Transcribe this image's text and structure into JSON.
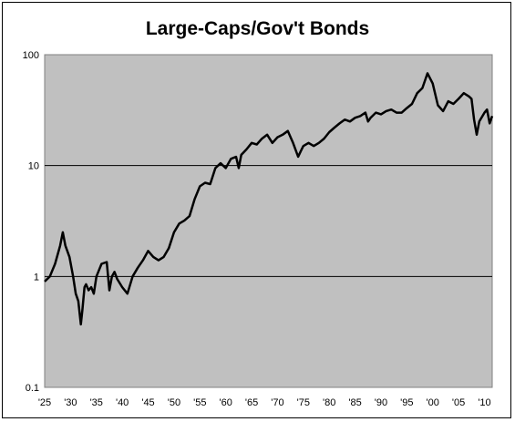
{
  "chart_data": {
    "type": "line",
    "title": "Large-Caps/Gov't Bonds",
    "xlabel": "",
    "ylabel": "",
    "y_scale": "log",
    "ylim": [
      0.1,
      100
    ],
    "xlim": [
      1925,
      2011.5
    ],
    "y_ticks": [
      "0.1",
      "1",
      "10",
      "100"
    ],
    "y_tick_values": [
      0.1,
      1,
      10,
      100
    ],
    "x_ticks": [
      "'25",
      "'30",
      "'35",
      "'40",
      "'45",
      "'50",
      "'55",
      "'60",
      "'65",
      "'70",
      "'75",
      "'80",
      "'85",
      "'90",
      "'95",
      "'00",
      "'05",
      "'10"
    ],
    "x_tick_values": [
      1925,
      1930,
      1935,
      1940,
      1945,
      1950,
      1955,
      1960,
      1965,
      1970,
      1975,
      1980,
      1985,
      1990,
      1995,
      2000,
      2005,
      2010
    ],
    "grid": true,
    "legend": "none",
    "colors": {
      "plot_background": "#c0c0c0",
      "line": "#000000",
      "gridline": "#000000"
    },
    "series": [
      {
        "x": [
          1925,
          1926,
          1927,
          1928,
          1928.5,
          1929,
          1929.8,
          1930.5,
          1931,
          1931.5,
          1932,
          1932.3,
          1932.7,
          1933,
          1933.5,
          1934,
          1934.5,
          1935,
          1936,
          1937,
          1937.5,
          1938,
          1938.5,
          1939,
          1940,
          1941,
          1942,
          1943,
          1944,
          1945,
          1946,
          1947,
          1948,
          1949,
          1950,
          1951,
          1952,
          1953,
          1954,
          1955,
          1956,
          1957,
          1958,
          1959,
          1960,
          1961,
          1962,
          1962.5,
          1963,
          1964,
          1965,
          1966,
          1967,
          1968,
          1969,
          1970,
          1971,
          1972,
          1973,
          1974,
          1974.5,
          1975,
          1976,
          1977,
          1978,
          1979,
          1980,
          1981,
          1982,
          1983,
          1984,
          1985,
          1986,
          1987,
          1987.5,
          1988,
          1989,
          1990,
          1991,
          1992,
          1993,
          1994,
          1995,
          1996,
          1997,
          1998,
          1999,
          2000,
          2001,
          2002,
          2003,
          2004,
          2005,
          2006,
          2007,
          2007.5,
          2008,
          2008.5,
          2009,
          2010,
          2010.5,
          2011,
          2011.5
        ],
        "y": [
          0.9,
          1.0,
          1.3,
          1.9,
          2.5,
          1.9,
          1.5,
          1.0,
          0.7,
          0.6,
          0.37,
          0.5,
          0.8,
          0.85,
          0.75,
          0.8,
          0.7,
          1.0,
          1.3,
          1.35,
          0.75,
          1.0,
          1.1,
          0.95,
          0.8,
          0.7,
          1.0,
          1.2,
          1.4,
          1.7,
          1.5,
          1.4,
          1.5,
          1.8,
          2.5,
          3.0,
          3.2,
          3.5,
          5.0,
          6.5,
          7.0,
          6.8,
          9.5,
          10.5,
          9.5,
          11.5,
          12.0,
          9.5,
          12.5,
          14.0,
          16.0,
          15.5,
          17.5,
          19.0,
          16.0,
          18.0,
          19.0,
          20.5,
          16.0,
          12.0,
          13.5,
          15.0,
          16.0,
          15.0,
          16.0,
          17.5,
          20.0,
          22.0,
          24.0,
          26.0,
          25.0,
          27.0,
          28.0,
          30.0,
          25.0,
          27.0,
          30.0,
          29.0,
          31.0,
          32.0,
          30.0,
          30.0,
          33.0,
          36.0,
          45.0,
          50.0,
          68.0,
          55.0,
          35.0,
          31.0,
          38.0,
          36.0,
          40.0,
          45.0,
          42.0,
          40.0,
          26.0,
          19.0,
          25.0,
          30.0,
          32.0,
          24.0,
          28.0
        ]
      }
    ]
  }
}
